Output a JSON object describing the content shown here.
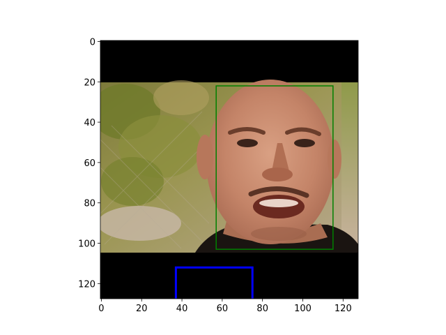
{
  "image": {
    "subject": "close-up of a bald man's face, mouth open, outdoors in front of chain-link fence and green foliage",
    "padding_color": "#000000",
    "skin_tone": "#c98f73",
    "background_foliage": "#8c8c3c"
  },
  "axes": {
    "x_ticks": [
      "0",
      "20",
      "40",
      "60",
      "80",
      "100",
      "120"
    ],
    "y_ticks": [
      "0",
      "20",
      "40",
      "60",
      "80",
      "100",
      "120"
    ],
    "xlim": [
      -0.5,
      127.5
    ],
    "ylim": [
      127.5,
      -0.5
    ]
  },
  "annotations": {
    "face_box": {
      "x0": 57,
      "y0": 22,
      "x1": 115,
      "y1": 103,
      "color": "#008000"
    },
    "marker_box": {
      "x0": 37,
      "y0": 112,
      "x1": 75,
      "y1": 127.5,
      "color": "#0000ff"
    }
  }
}
